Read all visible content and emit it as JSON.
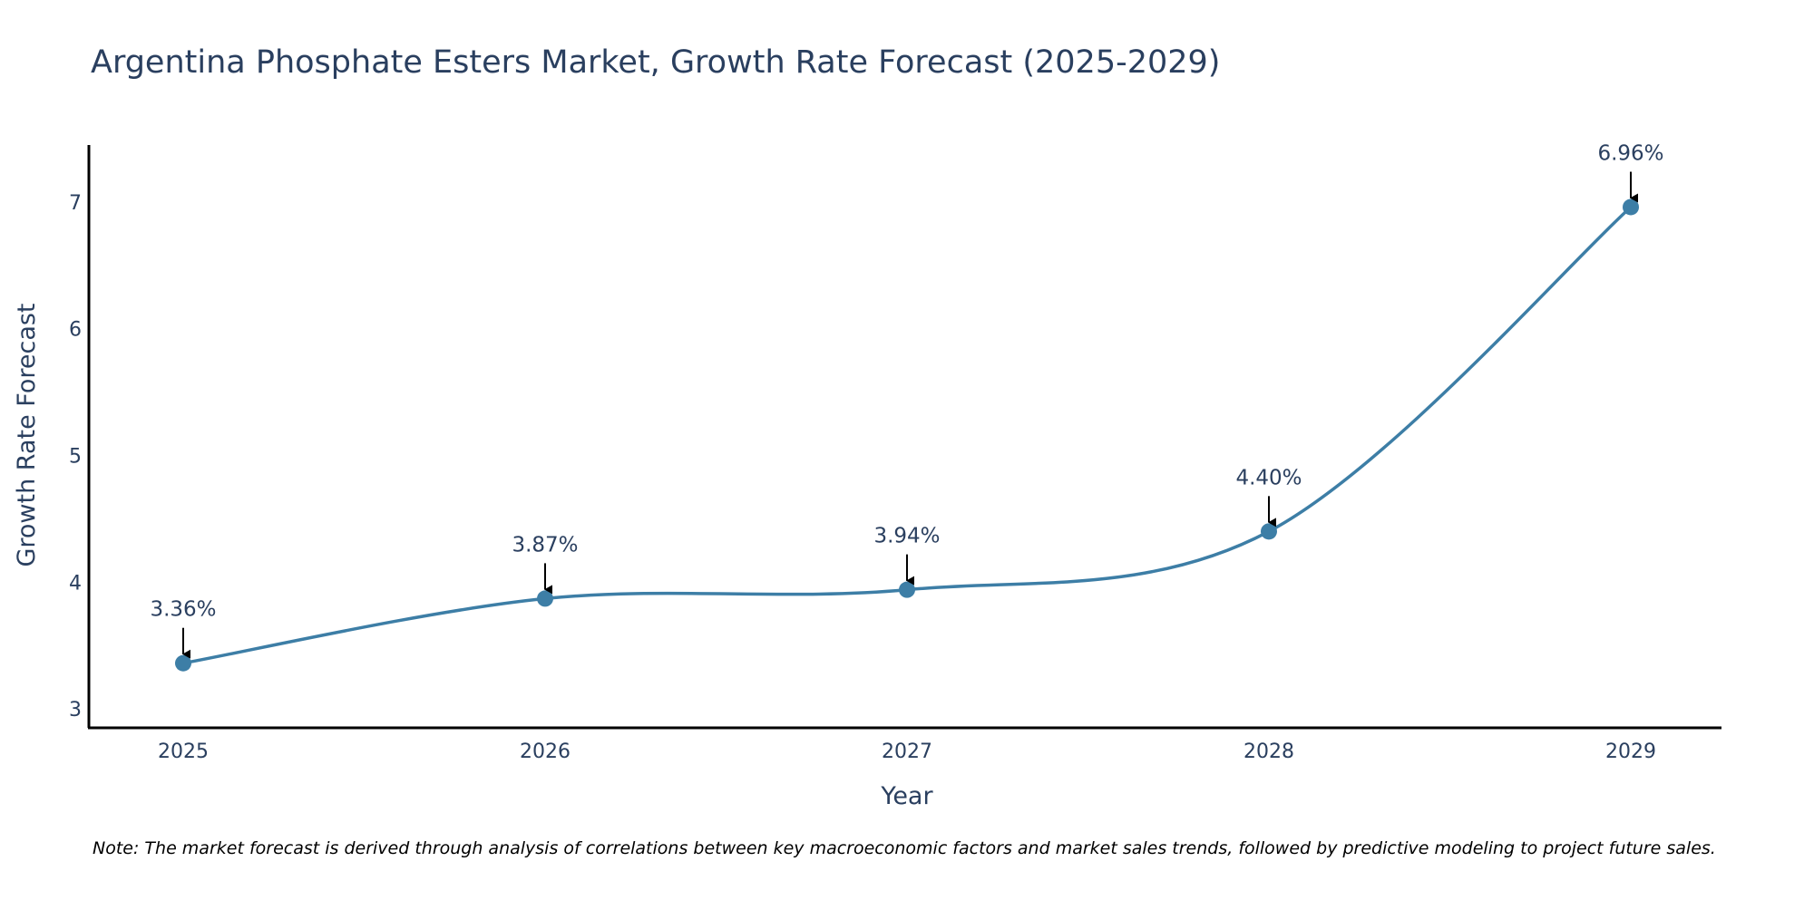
{
  "chart_data": {
    "type": "line",
    "title": "Argentina Phosphate Esters Market, Growth Rate Forecast (2025-2029)",
    "xlabel": "Year",
    "ylabel": "Growth Rate Forecast",
    "categories": [
      "2025",
      "2026",
      "2027",
      "2028",
      "2029"
    ],
    "series": [
      {
        "name": "Growth Rate Forecast",
        "values": [
          3.36,
          3.87,
          3.94,
          4.4,
          6.96
        ],
        "color": "#3d7ea6"
      }
    ],
    "data_labels": [
      "3.36%",
      "3.87%",
      "3.94%",
      "4.40%",
      "6.96%"
    ],
    "yticks": [
      3,
      4,
      5,
      6,
      7
    ],
    "ylim": [
      2.85,
      7.45
    ],
    "grid": false,
    "note": "Note: The market forecast is derived through analysis of correlations between key macroeconomic factors and market sales trends, followed by predictive modeling to project future sales.",
    "colors": {
      "title_text": "#2a3f5f",
      "axis_line": "#000000",
      "arrow": "#000000",
      "line": "#3d7ea6",
      "marker": "#3d7ea6"
    }
  }
}
